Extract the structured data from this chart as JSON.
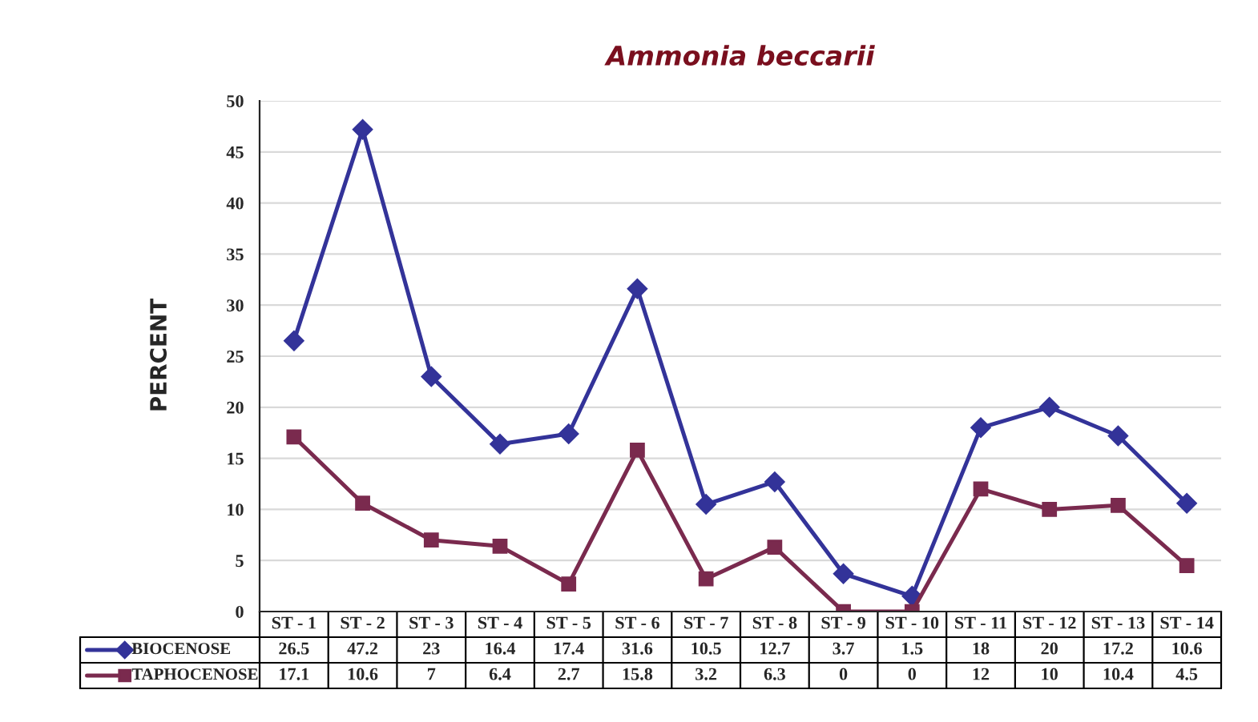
{
  "chart_data": {
    "type": "line",
    "title": "Ammonia beccarii",
    "ylabel": "PERCENT",
    "categories": [
      "ST - 1",
      "ST - 2",
      "ST - 3",
      "ST - 4",
      "ST - 5",
      "ST - 6",
      "ST - 7",
      "ST - 8",
      "ST - 9",
      "ST - 10",
      "ST - 11",
      "ST - 12",
      "ST - 13",
      "ST - 14"
    ],
    "series": [
      {
        "name": "BIOCENOSE",
        "color": "#333399",
        "marker": "diamond",
        "values": [
          26.5,
          47.2,
          23,
          16.4,
          17.4,
          31.6,
          10.5,
          12.7,
          3.7,
          1.5,
          18,
          20,
          17.2,
          10.6
        ]
      },
      {
        "name": "TAPHOCENOSE",
        "color": "#7a2a4e",
        "marker": "square",
        "values": [
          17.1,
          10.6,
          7,
          6.4,
          2.7,
          15.8,
          3.2,
          6.3,
          0,
          0,
          12,
          10,
          10.4,
          4.5
        ]
      }
    ],
    "ylim": [
      0,
      50
    ],
    "yticks": [
      0,
      5,
      10,
      15,
      20,
      25,
      30,
      35,
      40,
      45,
      50
    ],
    "grid": "y",
    "data_labels": true,
    "legend": "bottom",
    "line_style": "solid"
  }
}
